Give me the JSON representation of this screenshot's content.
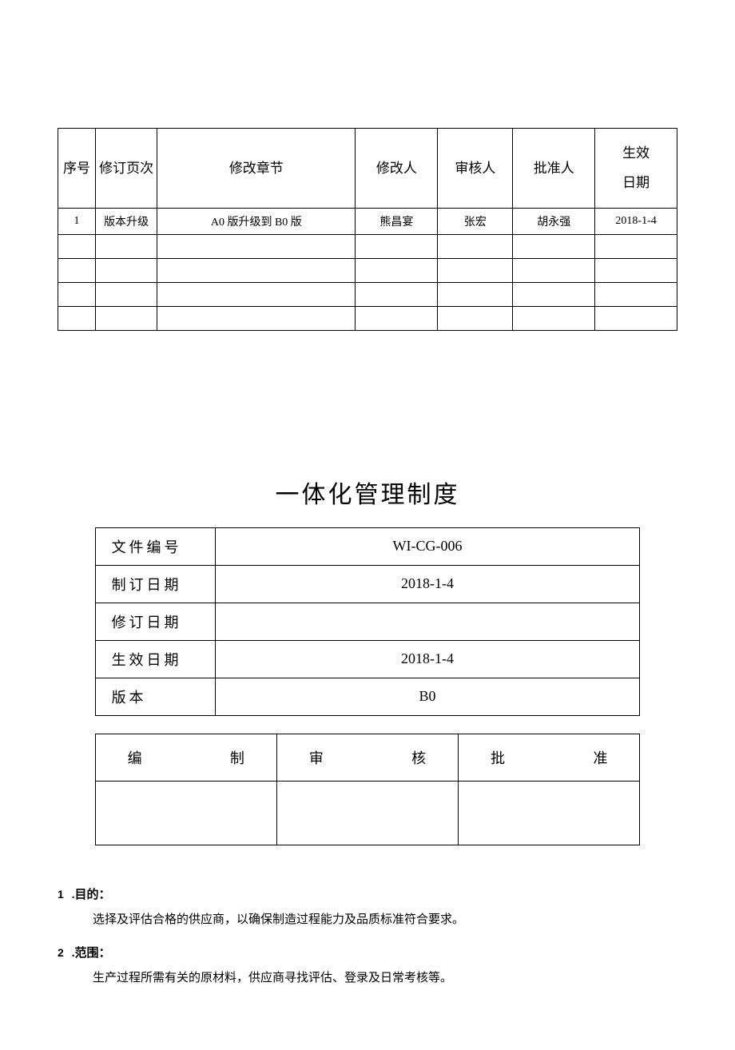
{
  "revisionTable": {
    "headers": {
      "seq": "序号",
      "page": "修订页次",
      "section": "修改章节",
      "modifier": "修改人",
      "reviewer": "审核人",
      "approver": "批准人",
      "effectiveDate": "生效\n日期"
    },
    "rows": [
      {
        "seq": "1",
        "page": "版本升级",
        "section": "A0 版升级到 B0 版",
        "modifier": "熊昌宴",
        "reviewer": "张宏",
        "approver": "胡永强",
        "date": "2018-1-4"
      },
      {
        "seq": "",
        "page": "",
        "section": "",
        "modifier": "",
        "reviewer": "",
        "approver": "",
        "date": ""
      },
      {
        "seq": "",
        "page": "",
        "section": "",
        "modifier": "",
        "reviewer": "",
        "approver": "",
        "date": ""
      },
      {
        "seq": "",
        "page": "",
        "section": "",
        "modifier": "",
        "reviewer": "",
        "approver": "",
        "date": ""
      },
      {
        "seq": "",
        "page": "",
        "section": "",
        "modifier": "",
        "reviewer": "",
        "approver": "",
        "date": ""
      }
    ]
  },
  "mainTitle": "一体化管理制度",
  "infoTable": {
    "rows": [
      {
        "label": "文件编号",
        "value": "WI-CG-006"
      },
      {
        "label": "制订日期",
        "value": "2018-1-4"
      },
      {
        "label": "修订日期",
        "value": ""
      },
      {
        "label": "生效日期",
        "value": "2018-1-4"
      },
      {
        "label": "版本",
        "value": "B0"
      }
    ]
  },
  "signTable": {
    "headers": {
      "compile": {
        "left": "编",
        "right": "制"
      },
      "review": {
        "left": "审",
        "right": "核"
      },
      "approve": {
        "left": "批",
        "right": "准"
      }
    }
  },
  "sections": [
    {
      "num": "1",
      "title": ".目的：",
      "body": "选择及评估合格的供应商，以确保制造过程能力及品质标准符合要求。"
    },
    {
      "num": "2",
      "title": ".范围：",
      "body": "生产过程所需有关的原材料，供应商寻找评估、登录及日常考核等。"
    }
  ]
}
